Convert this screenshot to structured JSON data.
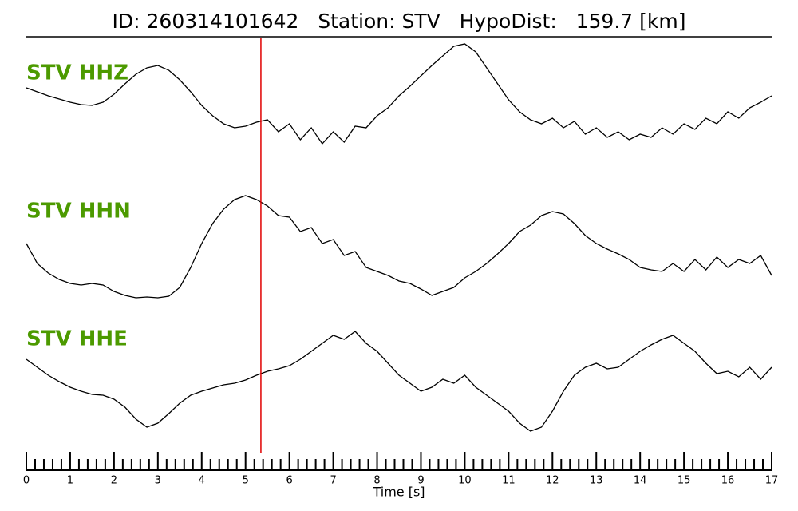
{
  "chart_data": {
    "type": "seismogram",
    "title": "ID: 260314101642   Station: STV   HypoDist:   159.7 [km]",
    "x_label": "Time [s]",
    "label_color": "#4c9a00",
    "line_color": "#000000",
    "xlim": [
      0,
      17
    ],
    "xticks": [
      0,
      1,
      2,
      3,
      4,
      5,
      6,
      7,
      8,
      9,
      10,
      11,
      12,
      13,
      14,
      15,
      16,
      17
    ],
    "xminorticks": [
      0.2,
      0.4,
      0.6,
      0.8,
      1.2,
      1.4,
      1.6,
      1.8,
      2.2,
      2.4,
      2.6,
      2.8,
      3.2,
      3.4,
      3.6,
      3.8,
      4.2,
      4.4,
      4.6,
      4.8,
      5.2,
      5.4,
      5.6,
      5.8,
      6.2,
      6.4,
      6.6,
      6.8,
      7.2,
      7.4,
      7.6,
      7.8,
      8.2,
      8.4,
      8.6,
      8.8,
      9.2,
      9.4,
      9.6,
      9.8,
      10.2,
      10.4,
      10.6,
      10.8,
      11.2,
      11.4,
      11.6,
      11.8,
      12.2,
      12.4,
      12.6,
      12.8,
      13.2,
      13.4,
      13.6,
      13.8,
      14.2,
      14.4,
      14.6,
      14.8,
      15.2,
      15.4,
      15.6,
      15.8,
      16.2,
      16.4,
      16.6,
      16.8
    ],
    "ylim": [
      -80,
      80
    ],
    "vlines": [
      {
        "x": 5.35,
        "color": "#e00000"
      }
    ],
    "x": [
      0,
      0.25,
      0.5,
      0.75,
      1,
      1.25,
      1.5,
      1.75,
      2,
      2.25,
      2.5,
      2.75,
      3,
      3.25,
      3.5,
      3.75,
      4,
      4.25,
      4.5,
      4.75,
      5,
      5.25,
      5.5,
      5.75,
      6,
      6.25,
      6.5,
      6.75,
      7,
      7.25,
      7.5,
      7.75,
      8,
      8.25,
      8.5,
      8.75,
      9,
      9.25,
      9.5,
      9.75,
      10,
      10.25,
      10.5,
      10.75,
      11,
      11.25,
      11.5,
      11.75,
      12,
      12.25,
      12.5,
      12.75,
      13,
      13.25,
      13.5,
      13.75,
      14,
      14.25,
      14.5,
      14.75,
      15,
      15.25,
      15.5,
      15.75,
      16,
      16.25,
      16.5,
      16.75,
      17
    ],
    "series": [
      {
        "name": "STV HHZ",
        "values": [
          15,
          10,
          5,
          1,
          -3,
          -6,
          -7,
          -3,
          7,
          20,
          32,
          40,
          43,
          37,
          25,
          10,
          -7,
          -20,
          -30,
          -35,
          -33,
          -28,
          -25,
          -40,
          -30,
          -50,
          -35,
          -55,
          -40,
          -53,
          -33,
          -35,
          -20,
          -10,
          5,
          17,
          30,
          43,
          55,
          67,
          70,
          60,
          40,
          20,
          0,
          -15,
          -25,
          -30,
          -23,
          -35,
          -27,
          -43,
          -35,
          -47,
          -40,
          -50,
          -43,
          -47,
          -35,
          -43,
          -30,
          -37,
          -23,
          -30,
          -15,
          -23,
          -10,
          -3,
          5
        ]
      },
      {
        "name": "STV HHN",
        "values": [
          7,
          -18,
          -30,
          -38,
          -43,
          -45,
          -43,
          -45,
          -53,
          -58,
          -61,
          -60,
          -61,
          -59,
          -48,
          -23,
          7,
          32,
          50,
          62,
          67,
          62,
          54,
          42,
          40,
          22,
          27,
          7,
          12,
          -8,
          -3,
          -23,
          -28,
          -33,
          -40,
          -43,
          -50,
          -58,
          -53,
          -48,
          -36,
          -28,
          -18,
          -6,
          7,
          22,
          30,
          42,
          47,
          44,
          32,
          17,
          7,
          0,
          -6,
          -13,
          -23,
          -26,
          -28,
          -18,
          -28,
          -13,
          -26,
          -10,
          -23,
          -13,
          -18,
          -8,
          -33
        ]
      },
      {
        "name": "STV HHE",
        "values": [
          22,
          12,
          2,
          -6,
          -13,
          -18,
          -22,
          -23,
          -28,
          -38,
          -53,
          -63,
          -58,
          -46,
          -33,
          -23,
          -18,
          -14,
          -10,
          -8,
          -4,
          2,
          7,
          10,
          14,
          22,
          32,
          42,
          52,
          47,
          57,
          42,
          32,
          17,
          2,
          -8,
          -18,
          -13,
          -3,
          -8,
          2,
          -13,
          -23,
          -33,
          -43,
          -58,
          -68,
          -63,
          -43,
          -18,
          2,
          12,
          17,
          10,
          12,
          22,
          32,
          40,
          47,
          52,
          42,
          32,
          17,
          4,
          7,
          0,
          12,
          -3,
          12
        ]
      }
    ]
  }
}
